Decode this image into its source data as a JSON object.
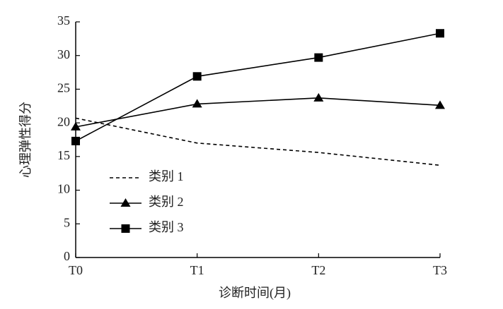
{
  "chart_data": {
    "type": "line",
    "x_label": "诊断时间(月)",
    "y_label": "心理弹性得分",
    "categories": [
      "T0",
      "T1",
      "T2",
      "T3"
    ],
    "series": [
      {
        "name": "类别 1",
        "color": "#000000",
        "line_style": "dashed",
        "marker": "none",
        "values": [
          20.7,
          17.0,
          15.6,
          13.7
        ]
      },
      {
        "name": "类别 2",
        "color": "#000000",
        "line_style": "solid",
        "marker": "triangle",
        "values": [
          19.4,
          22.8,
          23.7,
          22.6
        ]
      },
      {
        "name": "类别 3",
        "color": "#000000",
        "line_style": "solid",
        "marker": "square",
        "values": [
          17.3,
          26.9,
          29.7,
          33.3
        ]
      }
    ],
    "ylim": [
      0,
      35
    ],
    "yticks": [
      0,
      5,
      10,
      15,
      20,
      25,
      30,
      35
    ],
    "grid": false,
    "legend": "lower left"
  }
}
